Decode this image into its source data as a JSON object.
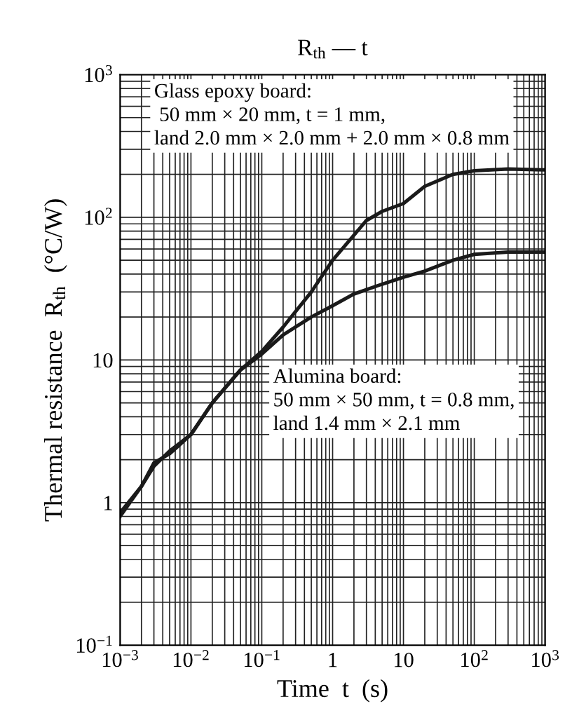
{
  "chart_data": {
    "type": "line",
    "title": "R$_{th}$ — t",
    "xlabel": "Time  t  (s)",
    "ylabel": "Thermal resistance  R$_{th}$  (°C/W)",
    "log": "xy",
    "grid": true,
    "legend": false,
    "xlim": [
      0.001,
      1000
    ],
    "ylim": [
      0.1,
      1000
    ],
    "xticks": [
      {
        "value": 0.001,
        "label": "10$^{−3}$"
      },
      {
        "value": 0.01,
        "label": "10$^{−2}$"
      },
      {
        "value": 0.1,
        "label": "10$^{−1}$"
      },
      1,
      10,
      {
        "value": 100,
        "label": "10$^{2}$"
      },
      {
        "value": 1000,
        "label": "10$^{3}$"
      }
    ],
    "yticks": [
      {
        "value": 0.1,
        "label": "10$^{−1}$"
      },
      1,
      10,
      {
        "value": 100,
        "label": "10$^{2}$"
      },
      {
        "value": 1000,
        "label": "10$^{3}$"
      }
    ],
    "annotations": [
      "Glass epoxy board:\n 50 mm × 20 mm, t = 1 mm,\nland 2.0 mm × 2.0 mm + 2.0 mm × 0.8 mm",
      "Alumina board:\n50 mm × 50 mm, t = 0.8 mm,\nland 1.4 mm × 2.1 mm"
    ],
    "series": [
      {
        "color": "#1a1a1a",
        "x": [
          0.001,
          0.002,
          0.003,
          0.005,
          0.01,
          0.02,
          0.05,
          0.1,
          0.2,
          0.5,
          1,
          2,
          3,
          5,
          10,
          20,
          50,
          100,
          300,
          1000
        ],
        "values": [
          0.85,
          1.3,
          1.9,
          2.2,
          3,
          5,
          8.5,
          11.5,
          17,
          30,
          50,
          75,
          95,
          110,
          125,
          165,
          200,
          212,
          218,
          215
        ]
      },
      {
        "color": "#1a1a1a",
        "x": [
          0.001,
          0.002,
          0.003,
          0.005,
          0.01,
          0.02,
          0.05,
          0.1,
          0.2,
          0.5,
          1,
          2,
          5,
          10,
          20,
          50,
          100,
          300,
          1000
        ],
        "values": [
          0.8,
          1.3,
          1.8,
          2.3,
          3,
          5,
          8.5,
          11,
          15,
          20,
          24,
          29,
          34,
          38,
          42,
          50,
          55,
          57,
          57
        ]
      }
    ]
  }
}
